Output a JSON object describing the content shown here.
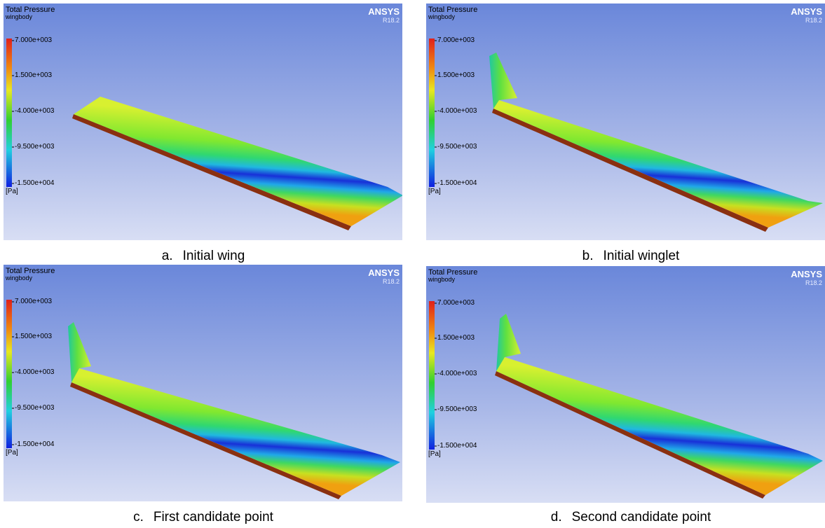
{
  "panels": [
    {
      "title": "Total Pressure",
      "subtitle": "wingbody",
      "legend_labels": [
        "7.000e+003",
        "1.500e+003",
        "-4.000e+003",
        "-9.500e+003",
        "-1.500e+004"
      ],
      "unit": "[Pa]",
      "logo": "ANSYS",
      "version": "R18.2",
      "caption_letter": "a.",
      "caption": "Initial wing"
    },
    {
      "title": "Total Pressure",
      "subtitle": "wingbody",
      "legend_labels": [
        "7.000e+003",
        "1.500e+003",
        "-4.000e+003",
        "-9.500e+003",
        "-1.500e+004"
      ],
      "unit": "[Pa]",
      "logo": "ANSYS",
      "version": "R18.2",
      "caption_letter": "b.",
      "caption": "Initial winglet"
    },
    {
      "title": "Total Pressure",
      "subtitle": "wingbody",
      "legend_labels": [
        "7.000e+003",
        "1.500e+003",
        "-4.000e+003",
        "-9.500e+003",
        "-1.500e+004"
      ],
      "unit": "[Pa]",
      "logo": "ANSYS",
      "version": "R18.2",
      "caption_letter": "c.",
      "caption": "First candidate point"
    },
    {
      "title": "Total Pressure",
      "subtitle": "wingbody",
      "legend_labels": [
        "7.000e+003",
        "1.500e+003",
        "-4.000e+003",
        "-9.500e+003",
        "-1.500e+004"
      ],
      "unit": "[Pa]",
      "logo": "ANSYS",
      "version": "R18.2",
      "caption_letter": "d.",
      "caption": "Second candidate point"
    }
  ]
}
